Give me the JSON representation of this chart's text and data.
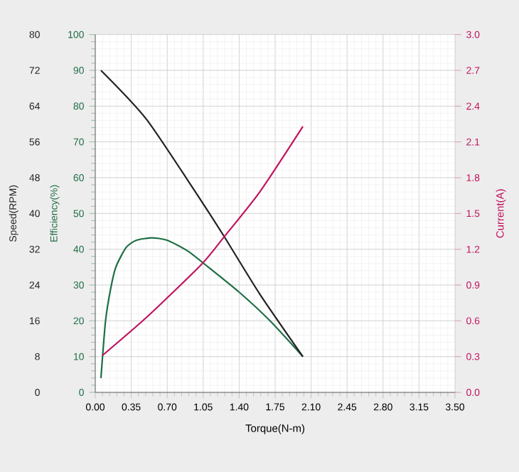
{
  "chart_data": {
    "type": "line",
    "xlabel": "Torque(N-m)",
    "ylabel": "Speed(RPM)",
    "y2label": "Current(A)",
    "y3label": "Efficiency(%)",
    "xlim": [
      0,
      3.5
    ],
    "xticks": [
      {
        "value": 0,
        "label": "0.00"
      },
      {
        "value": 0.35,
        "label": "0.35"
      },
      {
        "value": 0.7,
        "label": "0.70"
      },
      {
        "value": 1.05,
        "label": "1.05"
      },
      {
        "value": 1.4,
        "label": "1.40"
      },
      {
        "value": 1.75,
        "label": "1.75"
      },
      {
        "value": 2.1,
        "label": "2.10"
      },
      {
        "value": 2.45,
        "label": "2.45"
      },
      {
        "value": 2.8,
        "label": "2.80"
      },
      {
        "value": 3.15,
        "label": "3.15"
      },
      {
        "value": 3.5,
        "label": "3.50"
      }
    ],
    "ylim": [
      0,
      80
    ],
    "yticks": [
      0,
      8,
      16,
      24,
      32,
      40,
      48,
      56,
      64,
      72,
      80
    ],
    "y3lim": [
      0,
      100
    ],
    "y3ticks": [
      0,
      10,
      20,
      30,
      40,
      50,
      60,
      70,
      80,
      90,
      100
    ],
    "y2lim": [
      0,
      3.0
    ],
    "y2ticks": [
      {
        "value": 0,
        "label": "0.0"
      },
      {
        "value": 0.3,
        "label": "0.3"
      },
      {
        "value": 0.6,
        "label": "0.6"
      },
      {
        "value": 0.9,
        "label": "0.9"
      },
      {
        "value": 1.2,
        "label": "1.2"
      },
      {
        "value": 1.5,
        "label": "1.5"
      },
      {
        "value": 1.8,
        "label": "1.8"
      },
      {
        "value": 2.1,
        "label": "2.1"
      },
      {
        "value": 2.4,
        "label": "2.4"
      },
      {
        "value": 2.7,
        "label": "2.7"
      },
      {
        "value": 3.0,
        "label": "3.0"
      }
    ],
    "grid": true,
    "series": [
      {
        "color": "#222222",
        "x": [
          0.055,
          0.5,
          1.04,
          1.25,
          1.6,
          2.02
        ],
        "values": [
          72,
          61,
          42.5,
          35,
          22,
          8
        ]
      },
      {
        "color": "#1e6e45",
        "axis": "y3",
        "x": [
          0.055,
          0.1,
          0.15,
          0.2,
          0.3,
          0.4,
          0.55,
          0.7,
          0.9,
          1.1,
          1.4,
          1.7,
          2.02
        ],
        "values": [
          4,
          20,
          29,
          35,
          40.5,
          42.5,
          43.2,
          42.5,
          39.5,
          35,
          28,
          20,
          10
        ]
      },
      {
        "color": "#c0135f",
        "axis": "y2",
        "x": [
          0.07,
          0.5,
          1.03,
          1.25,
          1.6,
          2.02
        ],
        "values": [
          0.31,
          0.63,
          1.07,
          1.3,
          1.68,
          2.23
        ]
      }
    ]
  }
}
